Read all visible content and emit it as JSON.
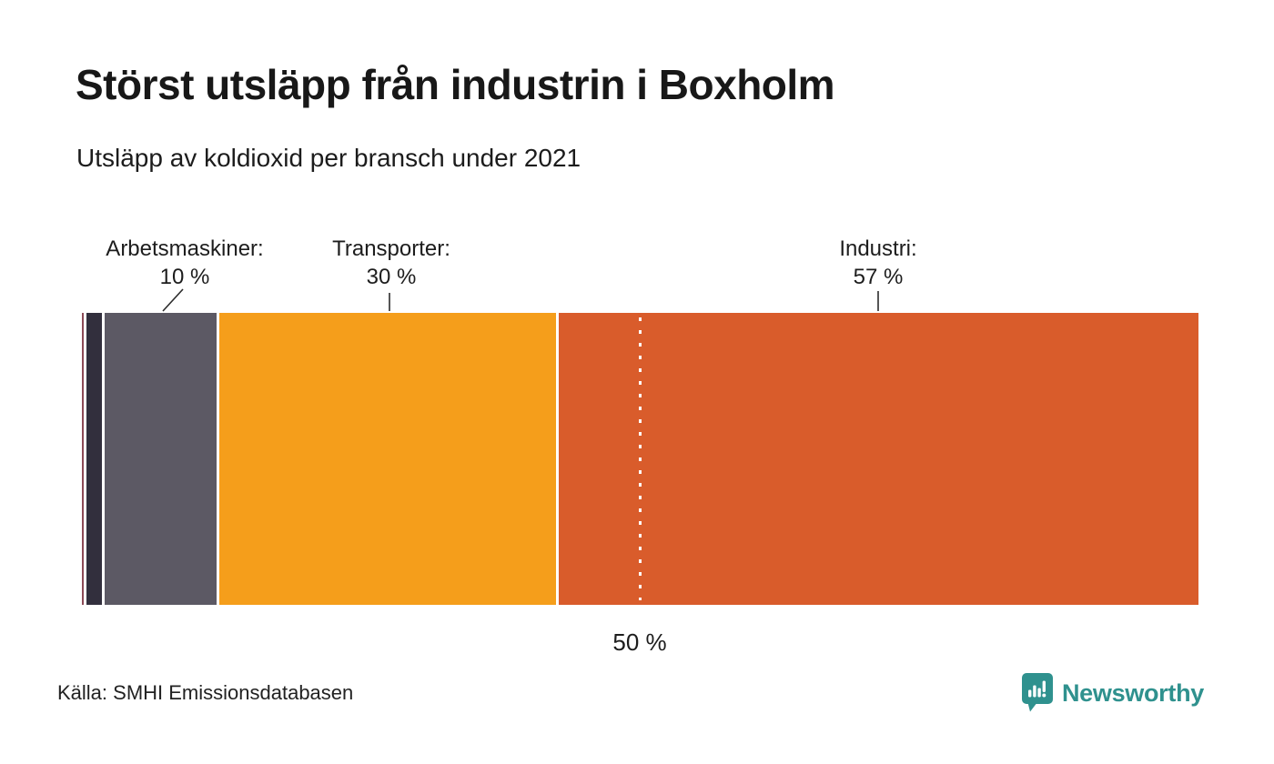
{
  "header": {
    "title": "Störst utsläpp från industrin i Boxholm",
    "subtitle": "Utsläpp av koldioxid per bransch under 2021"
  },
  "chart_data": {
    "type": "bar",
    "variant": "horizontal-stacked-percentage",
    "title": "Störst utsläpp från industrin i Boxholm",
    "subtitle": "Utsläpp av koldioxid per bransch under 2021",
    "axis_range": [
      0,
      100
    ],
    "unit": "%",
    "grid": "off",
    "segments": [
      {
        "label": "",
        "value": 0.2,
        "color": "#8c4a56"
      },
      {
        "label": "",
        "value": 1.3,
        "color": "#322f3d"
      },
      {
        "label": "Arbetsmaskiner",
        "value": 10,
        "color": "#5c5964"
      },
      {
        "label": "Transporter",
        "value": 30,
        "color": "#f59e1b"
      },
      {
        "label": "Industri",
        "value": 57,
        "color": "#d95c2b"
      }
    ],
    "callouts": [
      {
        "title": "Arbetsmaskiner:",
        "value": "10 %"
      },
      {
        "title": "Transporter:",
        "value": "30 %"
      },
      {
        "title": "Industri:",
        "value": "57 %"
      }
    ],
    "marker": {
      "value": 50,
      "label": "50 %"
    }
  },
  "footer": {
    "source": "Källa: SMHI Emissionsdatabasen",
    "brand": "Newsworthy",
    "brand_color": "#2f918e"
  }
}
